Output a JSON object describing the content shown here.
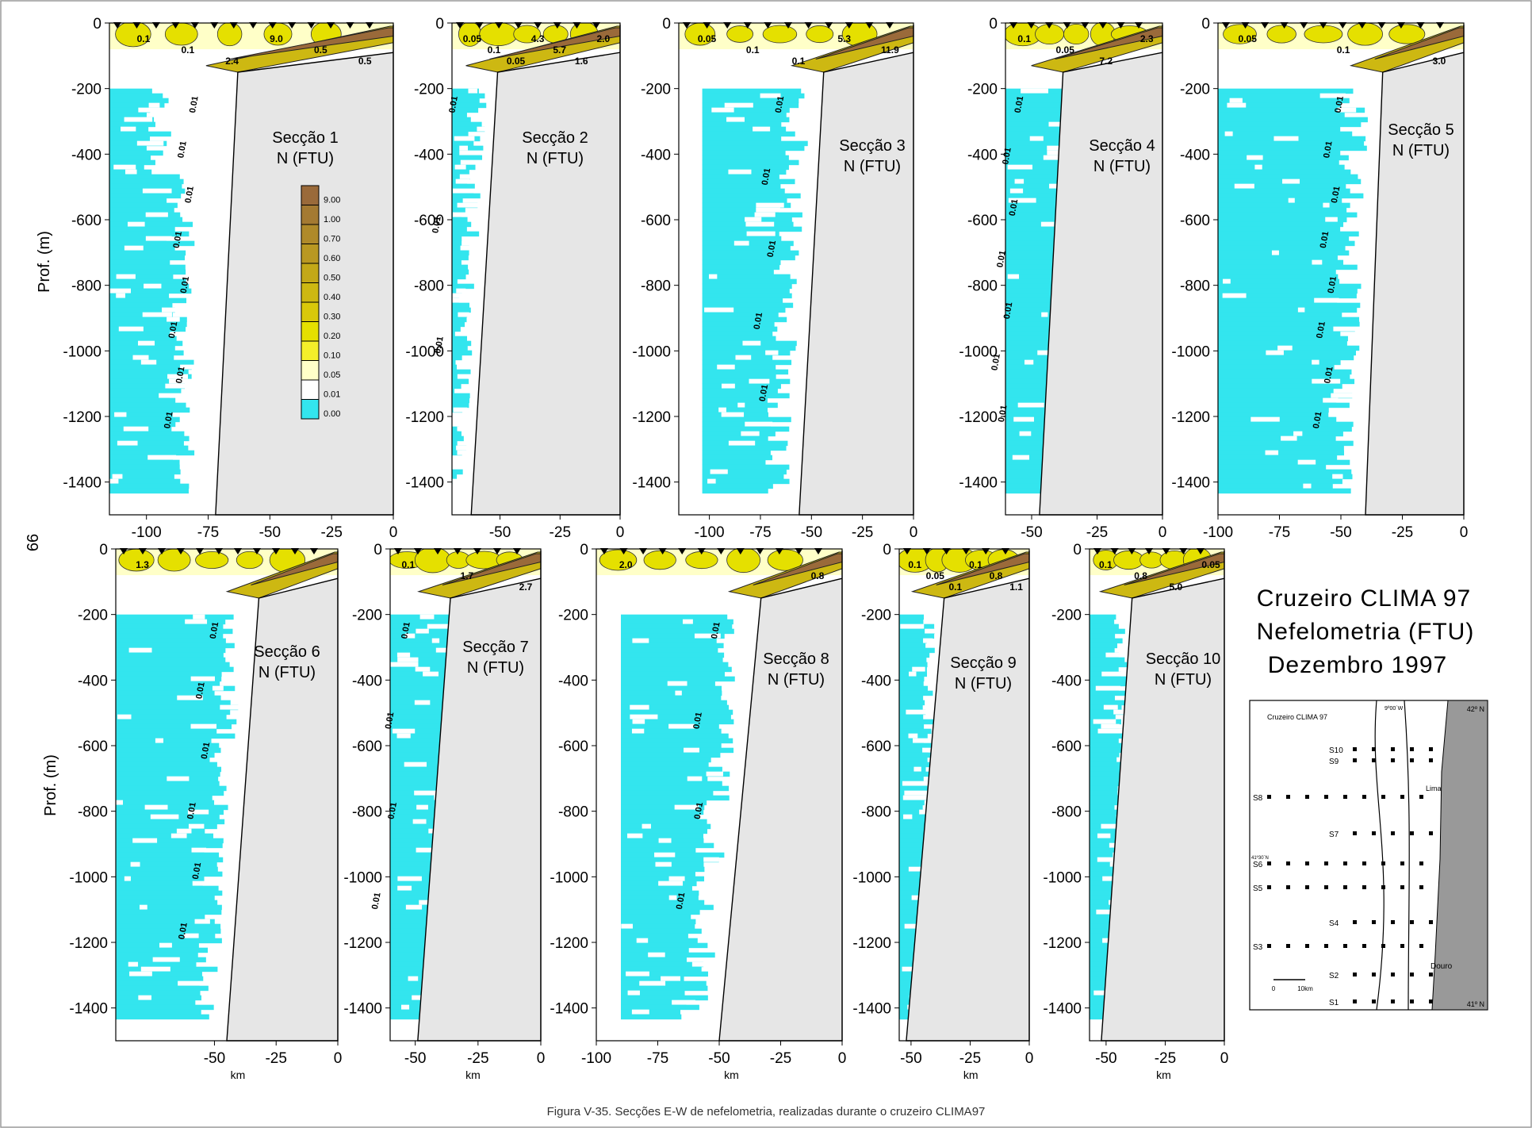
{
  "page_number": "66",
  "caption": "Figura V-35. Secções E-W de nefelometria, realizadas durante o cruzeiro CLIMA97",
  "cruise_title": {
    "line1": "Cruzeiro CLIMA 97",
    "line2": "Nefelometria (FTU)",
    "line3": "Dezembro 1997"
  },
  "y_axis_label": "Prof. (m)",
  "x_axis_label": "km",
  "colors": {
    "cyan": "#33E5EE",
    "white": "#FFFFFF",
    "cream": "#FFFFC8",
    "yellow": "#E5E000",
    "olive": "#CDB812",
    "brown": "#9A6A3A",
    "seabed": "#E6E6E6"
  },
  "legend": {
    "labels": [
      "9.00",
      "1.00",
      "0.70",
      "0.60",
      "0.50",
      "0.40",
      "0.30",
      "0.20",
      "0.10",
      "0.05",
      "0.01",
      "0.00"
    ],
    "colors": [
      "#9A6A3A",
      "#A47A32",
      "#AF8A2A",
      "#B99822",
      "#C3A818",
      "#CDB812",
      "#D9C80A",
      "#E5E000",
      "#F4EF2A",
      "#FFFFC8",
      "#FFFFFF",
      "#33E5EE"
    ]
  },
  "map": {
    "title": "Cruzeiro CLIMA 97",
    "lon_label": "9º00´W",
    "lat_top": "42º N",
    "lat_mid": "41º30´N",
    "lat_bottom": "41º N",
    "lima": "Lima",
    "douro": "Douro",
    "scale_zero": "0",
    "scale_km": "10km",
    "sections": [
      "S10",
      "S9",
      "S8",
      "S7",
      "S6",
      "S5",
      "S4",
      "S3",
      "S2",
      "S1"
    ]
  },
  "chart_data": [
    {
      "type": "heatmap",
      "title": "Secção 1",
      "subtitle": "N (FTU)",
      "xlim": [
        -115,
        0
      ],
      "ylim": [
        -1500,
        0
      ],
      "x_ticks": [
        -100,
        -75,
        -50,
        -25,
        0
      ],
      "y_ticks": [
        0,
        -200,
        -400,
        -600,
        -800,
        -1000,
        -1200,
        -1400
      ],
      "shelf_break_km": -63,
      "slope_foot_km": -72,
      "contour_labels": [
        "0.1",
        "0.1",
        "2.4",
        "9.0",
        "0.5",
        "0.5"
      ],
      "near_bottom_labels": [
        "0.01",
        "0.01",
        "0.01",
        "0.01",
        "0.01",
        "0.01",
        "0.01",
        "0.01"
      ]
    },
    {
      "type": "heatmap",
      "title": "Secção 2",
      "subtitle": "N (FTU)",
      "xlim": [
        -70,
        0
      ],
      "ylim": [
        -1500,
        0
      ],
      "x_ticks": [
        -50,
        -25,
        0
      ],
      "y_ticks": [
        0,
        -200,
        -400,
        -600,
        -800,
        -1000,
        -1200,
        -1400
      ],
      "shelf_break_km": -51,
      "slope_foot_km": -62,
      "contour_labels": [
        "0.05",
        "0.1",
        "0.05",
        "4.3",
        "5.7",
        "1.6",
        "2.0"
      ],
      "near_bottom_labels": [
        "0.01",
        "0.01",
        "0.01"
      ]
    },
    {
      "type": "heatmap",
      "title": "Secção 3",
      "subtitle": "N (FTU)",
      "xlim": [
        -115,
        0
      ],
      "ylim": [
        -1500,
        0
      ],
      "x_ticks": [
        -100,
        -75,
        -50,
        -25,
        0
      ],
      "y_ticks": [
        0,
        -200,
        -400,
        -600,
        -800,
        -1000,
        -1200,
        -1400
      ],
      "shelf_break_km": -44,
      "slope_foot_km": -56,
      "contour_labels": [
        "0.05",
        "0.1",
        "0.1",
        "5.3",
        "11.9"
      ],
      "near_bottom_labels": [
        "0.01",
        "0.01",
        "0.01",
        "0.01",
        "0.01"
      ]
    },
    {
      "type": "heatmap",
      "title": "Secção 4",
      "subtitle": "N (FTU)",
      "xlim": [
        -60,
        0
      ],
      "ylim": [
        -1500,
        0
      ],
      "x_ticks": [
        -50,
        -25,
        0
      ],
      "y_ticks": [
        0,
        -200,
        -400,
        -600,
        -800,
        -1000,
        -1200,
        -1400
      ],
      "shelf_break_km": -38,
      "slope_foot_km": -47,
      "contour_labels": [
        "0.1",
        "0.05",
        "7.2",
        "2.3"
      ],
      "near_bottom_labels": [
        "0.01",
        "0.01",
        "0.01",
        "0.01",
        "0.01",
        "0.01",
        "0.01"
      ]
    },
    {
      "type": "heatmap",
      "title": "Secção 5",
      "subtitle": "N (FTU)",
      "xlim": [
        -100,
        0
      ],
      "ylim": [
        -1500,
        0
      ],
      "x_ticks": [
        -100,
        -75,
        -50,
        -25,
        0
      ],
      "y_ticks": [
        0,
        -200,
        -400,
        -600,
        -800,
        -1000,
        -1200,
        -1400
      ],
      "shelf_break_km": -33,
      "slope_foot_km": -40,
      "contour_labels": [
        "0.05",
        "0.1",
        "3.0"
      ],
      "near_bottom_labels": [
        "0.01",
        "0.01",
        "0.01",
        "0.01",
        "0.01",
        "0.01",
        "0.01",
        "0.01"
      ]
    },
    {
      "type": "heatmap",
      "title": "Secção 6",
      "subtitle": "N (FTU)",
      "xlim": [
        -90,
        0
      ],
      "ylim": [
        -1500,
        0
      ],
      "x_ticks": [
        -50,
        -25,
        0
      ],
      "y_ticks": [
        0,
        -200,
        -400,
        -600,
        -800,
        -1000,
        -1200,
        -1400
      ],
      "shelf_break_km": -32,
      "slope_foot_km": -45,
      "contour_labels": [
        "1.3"
      ],
      "near_bottom_labels": [
        "0.01",
        "0.01",
        "0.01",
        "0.01",
        "0.01",
        "0.01"
      ]
    },
    {
      "type": "heatmap",
      "title": "Secção 7",
      "subtitle": "N (FTU)",
      "xlim": [
        -60,
        0
      ],
      "ylim": [
        -1500,
        0
      ],
      "x_ticks": [
        -50,
        -25,
        0
      ],
      "y_ticks": [
        0,
        -200,
        -400,
        -600,
        -800,
        -1000,
        -1200,
        -1400
      ],
      "shelf_break_km": -36,
      "slope_foot_km": -49,
      "contour_labels": [
        "0.1",
        "1.7",
        "2.7"
      ],
      "near_bottom_labels": [
        "0.01",
        "0.01",
        "0.01",
        "0.01"
      ]
    },
    {
      "type": "heatmap",
      "title": "Secção 8",
      "subtitle": "N (FTU)",
      "xlim": [
        -100,
        0
      ],
      "ylim": [
        -1500,
        0
      ],
      "x_ticks": [
        -100,
        -75,
        -50,
        -25,
        0
      ],
      "y_ticks": [
        0,
        -200,
        -400,
        -600,
        -800,
        -1000,
        -1200,
        -1400
      ],
      "shelf_break_km": -33,
      "slope_foot_km": -50,
      "contour_labels": [
        "2.0",
        "0.8"
      ],
      "near_bottom_labels": [
        "0.01",
        "0.01",
        "0.01",
        "0.01"
      ]
    },
    {
      "type": "heatmap",
      "title": "Secção 9",
      "subtitle": "N (FTU)",
      "xlim": [
        -55,
        0
      ],
      "ylim": [
        -1500,
        0
      ],
      "x_ticks": [
        -50,
        -25,
        0
      ],
      "y_ticks": [
        0,
        -200,
        -400,
        -600,
        -800,
        -1000,
        -1200,
        -1400
      ],
      "shelf_break_km": -36,
      "slope_foot_km": -52,
      "contour_labels": [
        "0.1",
        "0.05",
        "0.1",
        "0.1",
        "0.8",
        "1.1"
      ],
      "near_bottom_labels": []
    },
    {
      "type": "heatmap",
      "title": "Secção 10",
      "subtitle": "N (FTU)",
      "xlim": [
        -57,
        0
      ],
      "ylim": [
        -1500,
        0
      ],
      "x_ticks": [
        -50,
        -25,
        0
      ],
      "y_ticks": [
        0,
        -200,
        -400,
        -600,
        -800,
        -1000,
        -1200,
        -1400
      ],
      "shelf_break_km": -39,
      "slope_foot_km": -52,
      "contour_labels": [
        "0.1",
        "0.8",
        "5.0",
        "0.05"
      ],
      "near_bottom_labels": []
    }
  ]
}
